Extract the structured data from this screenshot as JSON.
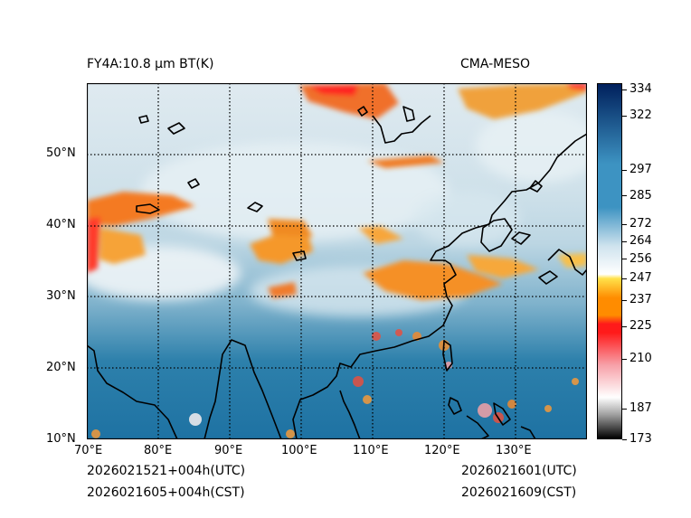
{
  "title_left": "FY4A:10.8 µm BT(K)",
  "title_right": "CMA-MESO",
  "map": {
    "lon_ticks": [
      "70°E",
      "80°E",
      "90°E",
      "100°E",
      "110°E",
      "120°E",
      "130°E"
    ],
    "lat_ticks": [
      "10°N",
      "20°N",
      "30°N",
      "40°N",
      "50°N"
    ],
    "lon_range": [
      70,
      140
    ],
    "lat_range": [
      10,
      60
    ],
    "gridlines": "dotted"
  },
  "colorbar": {
    "unit": "K",
    "min": 173,
    "max": 337,
    "ticks": [
      334,
      322,
      297,
      285,
      272,
      264,
      256,
      247,
      237,
      225,
      210,
      187,
      173
    ],
    "colors": {
      "black": "#000000",
      "gray": "#a0a0a0",
      "white": "#ffffff",
      "pink": "#f7a0a8",
      "red": "#ff1a1a",
      "orange": "#ff8c00",
      "yellow": "#ffe14a",
      "light_blue": "#cfe3ee",
      "mid_blue": "#3d93c2",
      "dark_blue": "#00205c"
    }
  },
  "footer": {
    "init_utc": "2026021521+004h(UTC)",
    "init_cst": "2026021605+004h(CST)",
    "valid_utc": "2026021601(UTC)",
    "valid_cst": "2026021609(CST)"
  }
}
